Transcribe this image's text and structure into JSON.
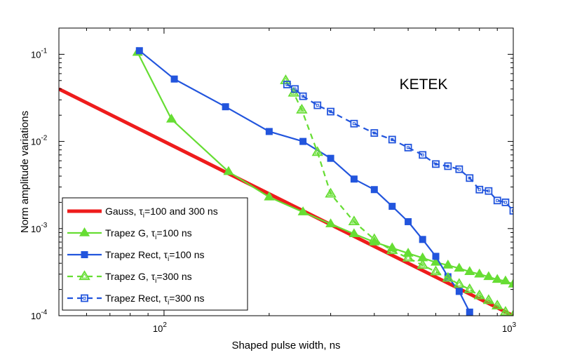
{
  "chart_data": {
    "type": "line",
    "xscale": "log",
    "yscale": "log",
    "xlim": [
      50,
      1000
    ],
    "ylim": [
      0.0001,
      0.2
    ],
    "xlabel": "Shaped pulse width, ns",
    "ylabel": "Norm amplitude variations",
    "annotation": "KETEK",
    "x_ticks": [
      {
        "value": 100,
        "base": "10",
        "exp": "2"
      },
      {
        "value": 1000,
        "base": "10",
        "exp": "3"
      }
    ],
    "y_ticks": [
      {
        "value": 0.1,
        "base": "10",
        "exp": "-1"
      },
      {
        "value": 0.01,
        "base": "10",
        "exp": "-2"
      },
      {
        "value": 0.001,
        "base": "10",
        "exp": "-3"
      },
      {
        "value": 0.0001,
        "base": "10",
        "exp": "-4"
      }
    ],
    "series": [
      {
        "name": "Gauss, τi=100 and 300 ns",
        "legend_main": "Gauss, τ",
        "legend_sub": "i",
        "legend_rest": "=100 and 300 ns",
        "color": "#ee1c1c",
        "marker": "none",
        "dash": false,
        "x": [
          50,
          1000
        ],
        "y": [
          0.04,
          0.0001
        ]
      },
      {
        "name": "Trapez G, τi=100 ns",
        "legend_main": "Trapez G, τ",
        "legend_sub": "i",
        "legend_rest": "=100 ns",
        "color": "#66dd33",
        "marker": "triangle-filled",
        "dash": false,
        "x": [
          84,
          105,
          153,
          200,
          250,
          300,
          350,
          400,
          450,
          500,
          550,
          600,
          650,
          700,
          750,
          800,
          850,
          900,
          950,
          1000
        ],
        "y": [
          0.105,
          0.018,
          0.0045,
          0.0023,
          0.00155,
          0.00113,
          0.00087,
          0.0007,
          0.0006,
          0.00052,
          0.00046,
          0.00041,
          0.00038,
          0.00035,
          0.00032,
          0.0003,
          0.00028,
          0.00026,
          0.00025,
          0.00023
        ]
      },
      {
        "name": "Trapez Rect, τi=100 ns",
        "legend_main": "Trapez Rect, τ",
        "legend_sub": "i",
        "legend_rest": "=100 ns",
        "color": "#2255dd",
        "marker": "square-filled",
        "dash": false,
        "x": [
          85,
          107,
          150,
          200,
          250,
          300,
          350,
          400,
          450,
          500,
          550,
          600,
          650,
          700,
          750
        ],
        "y": [
          0.11,
          0.052,
          0.025,
          0.013,
          0.01,
          0.0064,
          0.0037,
          0.0028,
          0.0018,
          0.0012,
          0.00075,
          0.00048,
          0.00028,
          0.00019,
          0.00011
        ]
      },
      {
        "name": "Trapez G, τi=300 ns",
        "legend_main": "Trapez G, τ",
        "legend_sub": "i",
        "legend_rest": "=300 ns",
        "color": "#66dd33",
        "marker": "triangle-open",
        "dash": true,
        "x": [
          223,
          235,
          248,
          275,
          300,
          350,
          400,
          450,
          500,
          550,
          600,
          650,
          700,
          750,
          800,
          850,
          900,
          950,
          1000
        ],
        "y": [
          0.05,
          0.036,
          0.023,
          0.0075,
          0.0025,
          0.0012,
          0.00075,
          0.00056,
          0.00046,
          0.00038,
          0.00032,
          0.00027,
          0.00023,
          0.0002,
          0.00017,
          0.00015,
          0.00013,
          0.00011,
          0.0001
        ]
      },
      {
        "name": "Trapez Rect, τi=300 ns",
        "legend_main": "Trapez Rect, τ",
        "legend_sub": "i",
        "legend_rest": "=300 ns",
        "color": "#2255dd",
        "marker": "square-open",
        "dash": true,
        "x": [
          225,
          237,
          250,
          275,
          300,
          350,
          400,
          450,
          500,
          550,
          600,
          650,
          700,
          750,
          800,
          850,
          900,
          950,
          1000
        ],
        "y": [
          0.045,
          0.04,
          0.033,
          0.026,
          0.022,
          0.016,
          0.0125,
          0.0105,
          0.0085,
          0.007,
          0.0055,
          0.0052,
          0.0048,
          0.0038,
          0.0028,
          0.0027,
          0.0021,
          0.002,
          0.0016
        ]
      }
    ]
  }
}
